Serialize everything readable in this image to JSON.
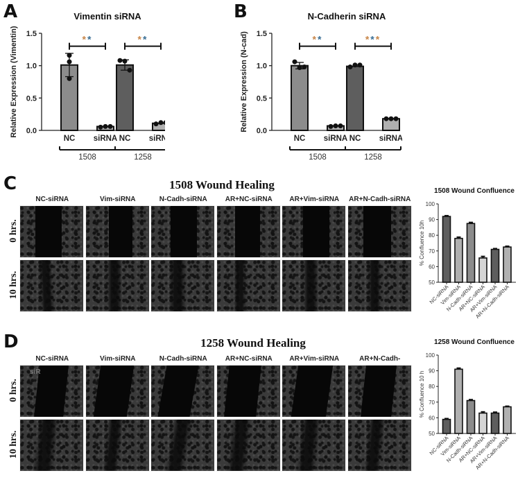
{
  "panels": {
    "A": {
      "letter": "A",
      "title": "Vimentin siRNA",
      "ylabel": "Relative Expression (Vimentin)",
      "yticks": [
        "0.0",
        "0.5",
        "1.0",
        "1.5"
      ],
      "xticks": [
        "NC",
        "siRNA",
        "NC",
        "siRNA"
      ],
      "groups": [
        "1508",
        "1258"
      ],
      "significance": [
        "**",
        "**"
      ]
    },
    "B": {
      "letter": "B",
      "title": "N-Cadherin siRNA",
      "ylabel": "Relative Expression (N-cad)",
      "yticks": [
        "0.0",
        "0.5",
        "1.0",
        "1.5"
      ],
      "xticks": [
        "NC",
        "siRNA",
        "NC",
        "siRNA"
      ],
      "groups": [
        "1508",
        "1258"
      ],
      "significance": [
        "**",
        "***"
      ]
    },
    "C": {
      "letter": "C",
      "title": "1508 Wound  Healing",
      "columns": [
        "NC-siRNA",
        "Vim-siRNA",
        "N-Cadh-siRNA",
        "AR+NC-siRNA",
        "AR+Vim-siRNA",
        "AR+N-Cadh-siRNA"
      ],
      "rows": [
        "0 hrs.",
        "10 hrs."
      ],
      "chart_title": "1508 Wound Confluence",
      "chart_ylabel": "% Confluence 10h",
      "chart_yticks": [
        "50",
        "60",
        "70",
        "80",
        "90",
        "100"
      ]
    },
    "D": {
      "letter": "D",
      "title": "1258 Wound  Healing",
      "columns": [
        "NC-siRNA",
        "Vim-siRNA",
        "N-Cadh-siRNA",
        "AR+NC-siRNA",
        "AR+Vim-siRNA",
        "AR+N-Cadh-"
      ],
      "rows": [
        "0 hrs.",
        "10 hrs."
      ],
      "image_overlay_text": "siR",
      "chart_title": "1258 Wound Confluence",
      "chart_ylabel": "% Confluence 10 h",
      "chart_yticks": [
        "50",
        "60",
        "70",
        "80",
        "90",
        "100"
      ]
    }
  },
  "colors": {
    "bar_mid": "#8c8c8c",
    "bar_dark": "#5e5e5e",
    "bar_light": "#b0b0b0",
    "bar_lightest": "#d4d4d4",
    "star_orange": "#c8874a",
    "star_blue": "#3a6f95"
  },
  "chart_data": [
    {
      "type": "bar",
      "title": "Vimentin siRNA",
      "xlabel": "",
      "ylabel": "Relative Expression (Vimentin)",
      "ylim": [
        0,
        1.5
      ],
      "categories": [
        "1508 NC",
        "1508 siRNA",
        "1258 NC",
        "1258 siRNA"
      ],
      "values": [
        1.01,
        0.06,
        1.01,
        0.11
      ],
      "errors": [
        0.18,
        0.01,
        0.08,
        0.01
      ],
      "points": [
        [
          1.16,
          1.06,
          0.8
        ],
        [
          0.05,
          0.06,
          0.06
        ],
        [
          1.08,
          1.07,
          0.93
        ],
        [
          0.1,
          0.12,
          0.12
        ]
      ],
      "groups": [
        "1508",
        "1258"
      ],
      "annotations": [
        {
          "between": [
            "1508 NC",
            "1508 siRNA"
          ],
          "label": "**"
        },
        {
          "between": [
            "1258 NC",
            "1258 siRNA"
          ],
          "label": "**"
        }
      ]
    },
    {
      "type": "bar",
      "title": "N-Cadherin siRNA",
      "xlabel": "",
      "ylabel": "Relative Expression (N-cad)",
      "ylim": [
        0,
        1.5
      ],
      "categories": [
        "1508 NC",
        "1508 siRNA",
        "1258 NC",
        "1258 siRNA"
      ],
      "values": [
        1.0,
        0.07,
        0.99,
        0.18
      ],
      "errors": [
        0.05,
        0.01,
        0.02,
        0.01
      ],
      "points": [
        [
          1.06,
          0.97,
          0.98
        ],
        [
          0.06,
          0.07,
          0.07
        ],
        [
          0.98,
          1.01,
          1.01
        ],
        [
          0.18,
          0.18,
          0.18
        ]
      ],
      "groups": [
        "1508",
        "1258"
      ],
      "annotations": [
        {
          "between": [
            "1508 NC",
            "1508 siRNA"
          ],
          "label": "**"
        },
        {
          "between": [
            "1258 NC",
            "1258 siRNA"
          ],
          "label": "***"
        }
      ]
    },
    {
      "type": "bar",
      "title": "1508 Wound Confluence",
      "xlabel": "",
      "ylabel": "% Confluence 10h",
      "ylim": [
        50,
        100
      ],
      "categories": [
        "NC-siRNA",
        "Vim-siRNA",
        "N-Cadh-siRNA",
        "AR+NC-siRNA",
        "AR+Vim-siRNA",
        "AR+N-Cadh-siRNA"
      ],
      "values": [
        92,
        78,
        87.5,
        65.5,
        71,
        72.5
      ],
      "errors": [
        0.5,
        0.8,
        0.7,
        1.0,
        0.5,
        0.5
      ]
    },
    {
      "type": "bar",
      "title": "1258 Wound Confluence",
      "xlabel": "",
      "ylabel": "% Confluence 10 h",
      "ylim": [
        50,
        100
      ],
      "categories": [
        "NC-siRNA",
        "Vim-siRNA",
        "N-Cadh-siRNA",
        "AR+NC-siRNA",
        "AR+Vim-siRNA",
        "AR+N-Cadh-siRNA"
      ],
      "values": [
        59,
        91,
        71,
        63,
        63,
        67
      ],
      "errors": [
        0.5,
        0.7,
        0.6,
        0.8,
        0.6,
        0.4
      ]
    }
  ]
}
